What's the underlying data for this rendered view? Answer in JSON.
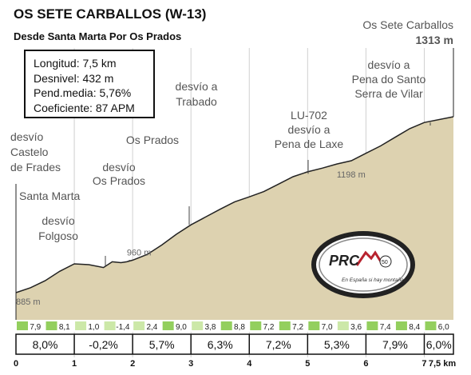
{
  "title": "OS SETE CARBALLOS (W-13)",
  "subtitle": "Desde Santa Marta  Por Os Prados",
  "summit": {
    "name": "Os Sete Carballos",
    "elevation": "1313 m"
  },
  "stats": [
    "Longitud: 7,5 km",
    "Desnivel: 432 m",
    "Pend.media: 5,76%",
    "Coeficiente: 87 APM"
  ],
  "logo_text": "PRC",
  "logo_tagline": "En España si hay montañas",
  "colors": {
    "profile_fill": "#ddd2b0",
    "profile_line": "#222222",
    "bar_light": "#cce8a8",
    "bar_dark": "#93cf5e"
  },
  "chart_data": {
    "type": "area",
    "xlabel": "km",
    "x_range": [
      0,
      7.5
    ],
    "x_ticks": [
      "0",
      "1",
      "2",
      "3",
      "4",
      "5",
      "6",
      "7",
      "7,5 km"
    ],
    "profile": [
      {
        "x": 0,
        "y": 885
      },
      {
        "x": 0.25,
        "y": 897
      },
      {
        "x": 0.5,
        "y": 914
      },
      {
        "x": 0.75,
        "y": 937
      },
      {
        "x": 1.0,
        "y": 955
      },
      {
        "x": 1.25,
        "y": 953
      },
      {
        "x": 1.5,
        "y": 946
      },
      {
        "x": 1.65,
        "y": 960
      },
      {
        "x": 1.8,
        "y": 958
      },
      {
        "x": 1.9,
        "y": 960
      },
      {
        "x": 2.0,
        "y": 964
      },
      {
        "x": 2.25,
        "y": 978
      },
      {
        "x": 2.5,
        "y": 1001
      },
      {
        "x": 2.75,
        "y": 1027
      },
      {
        "x": 3.0,
        "y": 1050
      },
      {
        "x": 3.25,
        "y": 1069
      },
      {
        "x": 3.5,
        "y": 1088
      },
      {
        "x": 3.75,
        "y": 1106
      },
      {
        "x": 4.0,
        "y": 1118
      },
      {
        "x": 4.25,
        "y": 1131
      },
      {
        "x": 4.5,
        "y": 1149
      },
      {
        "x": 4.75,
        "y": 1167
      },
      {
        "x": 5.0,
        "y": 1179
      },
      {
        "x": 5.25,
        "y": 1188
      },
      {
        "x": 5.5,
        "y": 1198
      },
      {
        "x": 5.75,
        "y": 1206
      },
      {
        "x": 6.0,
        "y": 1224
      },
      {
        "x": 6.25,
        "y": 1242
      },
      {
        "x": 6.5,
        "y": 1263
      },
      {
        "x": 6.75,
        "y": 1284
      },
      {
        "x": 7.0,
        "y": 1299
      },
      {
        "x": 7.5,
        "y": 1313
      }
    ],
    "elevation_labels": [
      {
        "x": 0,
        "y": 885,
        "text": "885 m"
      },
      {
        "x": 1.9,
        "y": 960,
        "text": "960 m"
      },
      {
        "x": 5.5,
        "y": 1198,
        "text": "1198 m"
      }
    ],
    "waypoints": [
      {
        "x": 0,
        "lines": [
          "desvío",
          "Castelo",
          "de Frades"
        ]
      },
      {
        "x": 0.05,
        "lines": [
          "Santa Marta"
        ]
      },
      {
        "x": 1.0,
        "lines": [
          "desvío",
          "Folgoso"
        ]
      },
      {
        "x": 1.55,
        "lines": [
          "desvío",
          "Os Prados"
        ]
      },
      {
        "x": 1.95,
        "lines": [
          "Os Prados"
        ]
      },
      {
        "x": 3.0,
        "lines": [
          "desvío a",
          "Trabado"
        ]
      },
      {
        "x": 4.9,
        "lines": [
          "LU-702",
          "desvío a",
          "Pena de Laxe"
        ]
      },
      {
        "x": 7.0,
        "lines": [
          "desvío a",
          "Pena do Santo",
          "Serra de Vilar"
        ]
      },
      {
        "x": 7.5,
        "lines": [
          "Os Sete Carballos",
          "1313 m"
        ]
      }
    ],
    "half_km_slopes": [
      7.9,
      8.1,
      1.0,
      -1.4,
      2.4,
      9.0,
      3.8,
      8.8,
      7.2,
      7.2,
      7.0,
      3.6,
      7.4,
      8.4,
      6.0
    ],
    "half_km_labels": [
      "7,9",
      "8,1",
      "1,0",
      "-1,4",
      "2,4",
      "9,0",
      "3,8",
      "8,8",
      "7,2",
      "7,2",
      "7,0",
      "3,6",
      "7,4",
      "8,4",
      "6,0"
    ],
    "km_slopes": [
      8.0,
      -0.2,
      5.7,
      6.3,
      7.2,
      5.3,
      7.9,
      6.0
    ],
    "km_labels": [
      "8,0%",
      "-0,2%",
      "5,7%",
      "6,3%",
      "7,2%",
      "5,3%",
      "7,9%",
      "6,0%"
    ]
  }
}
